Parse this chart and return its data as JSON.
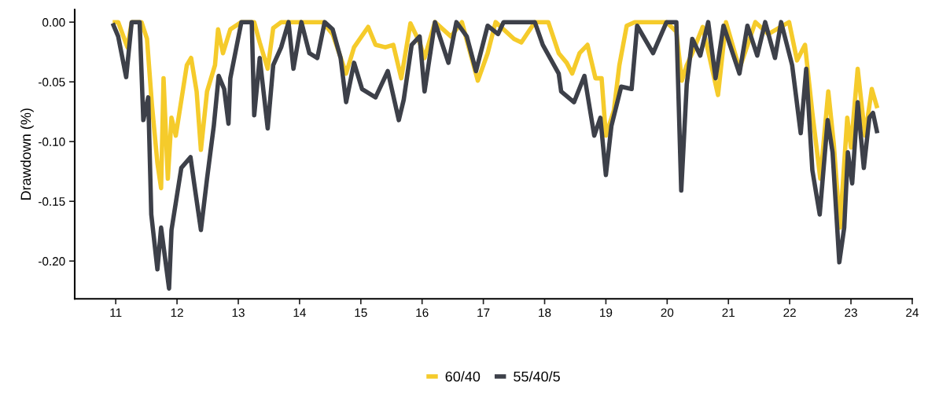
{
  "chart_data": {
    "type": "line",
    "ylabel": "Drawdown (%)",
    "xlim": [
      10.33,
      24.0
    ],
    "xticks": [
      11,
      12,
      13,
      14,
      15,
      16,
      17,
      18,
      19,
      20,
      21,
      22,
      23,
      24
    ],
    "ylim": [
      -0.2316,
      0.0105
    ],
    "yticks": [
      {
        "value": 0,
        "label": "0.00"
      },
      {
        "value": -0.05,
        "label": "-0.05"
      },
      {
        "value": -0.1,
        "label": "-0.10"
      },
      {
        "value": -0.15,
        "label": "-0.15"
      },
      {
        "value": -0.2,
        "label": "-0.20"
      }
    ],
    "grid": false,
    "legend": "bottom",
    "marker": "none",
    "line_style": "solid",
    "series": [
      {
        "name": "60/40",
        "color": "#f5cb2b",
        "x": [
          10.95,
          11.04,
          11.19,
          11.26,
          11.42,
          11.51,
          11.59,
          11.68,
          11.74,
          11.78,
          11.85,
          11.91,
          11.98,
          12.16,
          12.23,
          12.32,
          12.39,
          12.49,
          12.62,
          12.67,
          12.75,
          12.87,
          13.05,
          13.26,
          13.35,
          13.48,
          13.57,
          13.7,
          14.12,
          14.38,
          14.54,
          14.76,
          14.89,
          15.12,
          15.24,
          15.4,
          15.53,
          15.66,
          15.81,
          15.96,
          16.04,
          16.21,
          16.47,
          16.65,
          16.91,
          17.07,
          17.2,
          17.5,
          17.62,
          17.84,
          18.06,
          18.23,
          18.36,
          18.45,
          18.57,
          18.7,
          18.83,
          18.93,
          19.0,
          19.13,
          19.22,
          19.34,
          19.47,
          19.99,
          20.15,
          20.24,
          20.32,
          20.41,
          20.58,
          20.83,
          20.96,
          21.18,
          21.44,
          21.65,
          21.99,
          22.12,
          22.25,
          22.37,
          22.5,
          22.63,
          22.72,
          22.82,
          22.94,
          23.0,
          23.11,
          23.23,
          23.34,
          23.43
        ],
        "values": [
          0,
          0,
          -0.021,
          0,
          0,
          -0.014,
          -0.069,
          -0.118,
          -0.139,
          -0.047,
          -0.131,
          -0.08,
          -0.095,
          -0.036,
          -0.03,
          -0.058,
          -0.107,
          -0.058,
          -0.036,
          -0.006,
          -0.026,
          -0.006,
          0,
          0,
          -0.017,
          -0.039,
          -0.005,
          0,
          0,
          0,
          -0.01,
          -0.043,
          -0.021,
          -0.004,
          -0.019,
          -0.021,
          -0.019,
          -0.047,
          -0.001,
          -0.017,
          -0.03,
          0,
          -0.012,
          0,
          -0.049,
          -0.026,
          0,
          -0.014,
          -0.017,
          0,
          0,
          -0.026,
          -0.034,
          -0.043,
          -0.026,
          -0.019,
          -0.047,
          -0.047,
          -0.095,
          -0.074,
          -0.036,
          -0.003,
          0,
          0,
          -0.008,
          -0.049,
          -0.036,
          -0.026,
          -0.004,
          -0.061,
          0,
          -0.039,
          0,
          -0.01,
          0,
          -0.032,
          -0.019,
          -0.076,
          -0.131,
          -0.058,
          -0.102,
          -0.172,
          -0.08,
          -0.105,
          -0.039,
          -0.095,
          -0.056,
          -0.072
        ]
      },
      {
        "name": "55/40/5",
        "color": "#3d4049",
        "x": [
          10.95,
          11.04,
          11.17,
          11.26,
          11.39,
          11.45,
          11.53,
          11.58,
          11.68,
          11.74,
          11.87,
          11.91,
          12.07,
          12.22,
          12.28,
          12.39,
          12.49,
          12.6,
          12.68,
          12.77,
          12.84,
          12.87,
          13.05,
          13.22,
          13.26,
          13.35,
          13.48,
          13.57,
          13.7,
          13.82,
          13.9,
          14.03,
          14.16,
          14.29,
          14.41,
          14.54,
          14.67,
          14.76,
          14.89,
          15.02,
          15.24,
          15.44,
          15.62,
          15.7,
          15.83,
          15.96,
          16.04,
          16.21,
          16.43,
          16.56,
          16.73,
          16.88,
          17.07,
          17.24,
          17.33,
          17.84,
          17.97,
          18.23,
          18.27,
          18.48,
          18.65,
          18.81,
          18.91,
          19.0,
          19.09,
          19.25,
          19.42,
          19.51,
          19.77,
          19.99,
          20.15,
          20.23,
          20.32,
          20.41,
          20.54,
          20.67,
          20.79,
          20.92,
          21.18,
          21.31,
          21.47,
          21.6,
          21.76,
          21.86,
          22.04,
          22.18,
          22.27,
          22.37,
          22.49,
          22.62,
          22.7,
          22.81,
          22.89,
          22.95,
          23.02,
          23.11,
          23.21,
          23.3,
          23.36,
          23.43
        ],
        "values": [
          -0.001,
          -0.012,
          -0.046,
          0,
          0,
          -0.082,
          -0.063,
          -0.161,
          -0.207,
          -0.172,
          -0.223,
          -0.174,
          -0.122,
          -0.113,
          -0.135,
          -0.174,
          -0.131,
          -0.087,
          -0.045,
          -0.056,
          -0.085,
          -0.047,
          0,
          0,
          -0.078,
          -0.03,
          -0.089,
          -0.036,
          -0.021,
          0,
          -0.039,
          0,
          -0.026,
          -0.03,
          0,
          -0.006,
          -0.03,
          -0.067,
          -0.034,
          -0.056,
          -0.063,
          -0.041,
          -0.082,
          -0.065,
          -0.019,
          -0.012,
          -0.058,
          0,
          -0.034,
          0,
          -0.012,
          -0.041,
          -0.003,
          -0.01,
          0,
          0,
          -0.019,
          -0.043,
          -0.058,
          -0.067,
          -0.045,
          -0.095,
          -0.08,
          -0.128,
          -0.087,
          -0.054,
          -0.056,
          -0.003,
          -0.026,
          0,
          0,
          -0.141,
          -0.052,
          -0.014,
          -0.028,
          0,
          -0.047,
          -0.003,
          -0.043,
          -0.003,
          -0.028,
          0,
          -0.03,
          0,
          -0.036,
          -0.093,
          -0.039,
          -0.124,
          -0.161,
          -0.082,
          -0.109,
          -0.201,
          -0.172,
          -0.109,
          -0.135,
          -0.067,
          -0.122,
          -0.08,
          -0.076,
          -0.093
        ]
      }
    ]
  }
}
